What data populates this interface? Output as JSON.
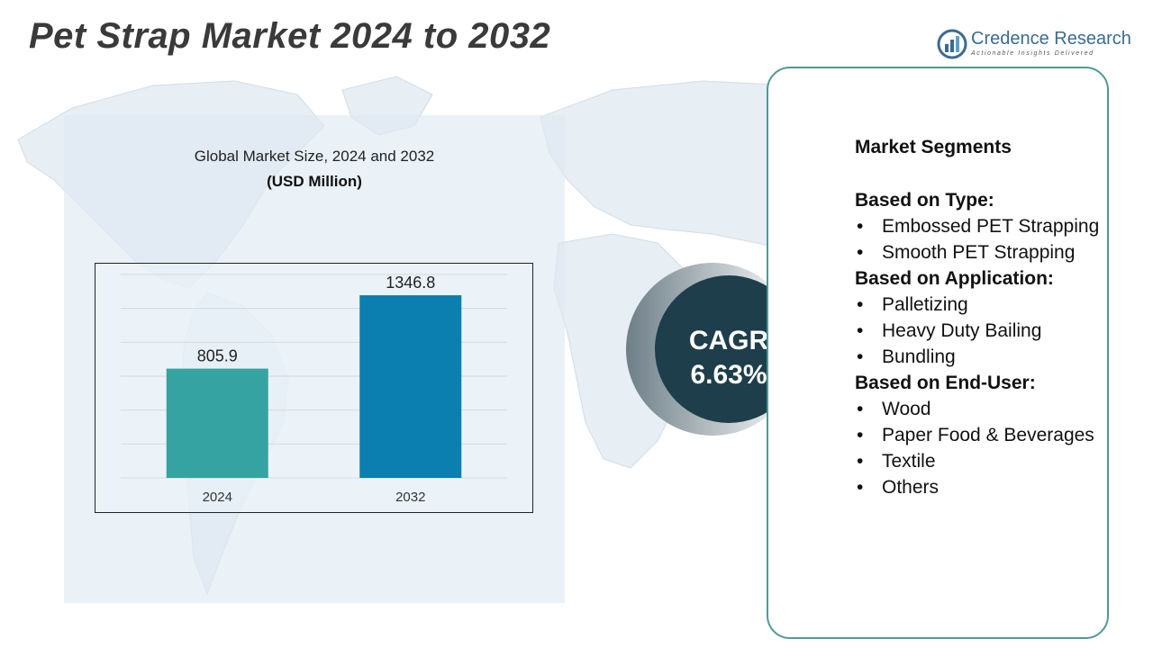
{
  "title": "Pet Strap Market 2024 to 2032",
  "logo": {
    "name": "Credence Research",
    "tagline": "Actionable Insights Delivered",
    "icon": "bar-chart-logo-icon"
  },
  "colors": {
    "bar_2024": "#35a3a1",
    "bar_2032": "#0a7fb0",
    "cagr_circle": "#1e3e4c",
    "segments_border": "#4e9a96",
    "title": "#3a3a3a"
  },
  "chart_data": {
    "type": "bar",
    "title": "Global Market Size, 2024 and 2032",
    "unit": "(USD Million)",
    "categories": [
      "2024",
      "2032"
    ],
    "values": [
      805.9,
      1346.8
    ],
    "value_labels": [
      "805.9",
      "1346.8"
    ],
    "ylim": [
      0,
      1500
    ],
    "grid": true,
    "legend": "none"
  },
  "cagr": {
    "label": "CAGR",
    "value": "6.63%"
  },
  "segments": {
    "heading": "Market Segments",
    "groups": [
      {
        "title": "Based on Type:",
        "items": [
          "Embossed PET Strapping",
          "Smooth PET Strapping"
        ]
      },
      {
        "title": "Based on Application:",
        "items": [
          "Palletizing",
          "Heavy Duty Bailing",
          "Bundling"
        ]
      },
      {
        "title": "Based on End-User:",
        "items": [
          "Wood",
          "Paper Food & Beverages",
          "Textile",
          "Others"
        ]
      }
    ]
  }
}
